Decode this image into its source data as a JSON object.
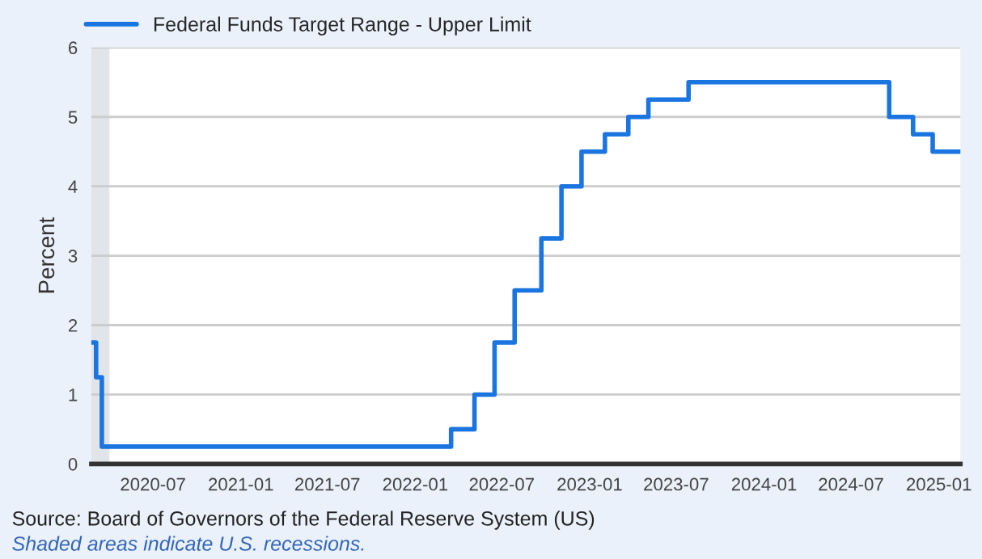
{
  "chart_data": {
    "type": "step",
    "ylabel": "Percent",
    "x": [
      "2020-02-23",
      "2020-03-04",
      "2020-03-16",
      "2022-03-17",
      "2022-05-05",
      "2022-06-16",
      "2022-07-28",
      "2022-09-22",
      "2022-11-03",
      "2022-12-15",
      "2023-02-02",
      "2023-03-23",
      "2023-05-04",
      "2023-07-27",
      "2024-09-19",
      "2024-11-08",
      "2024-12-19",
      "2025-02-15"
    ],
    "series": [
      {
        "name": "Federal Funds Target Range - Upper Limit",
        "color": "#1a75e0",
        "values": [
          1.75,
          1.25,
          0.25,
          0.5,
          1.0,
          1.75,
          2.5,
          3.25,
          4.0,
          4.5,
          4.75,
          5.0,
          5.25,
          5.5,
          5.0,
          4.75,
          4.5,
          4.5
        ]
      }
    ],
    "xlim": [
      "2020-02-23",
      "2025-02-15"
    ],
    "xticks": [
      "2020-07",
      "2021-01",
      "2021-07",
      "2022-01",
      "2022-07",
      "2023-01",
      "2023-07",
      "2024-01",
      "2024-07",
      "2025-01"
    ],
    "ylim": [
      0,
      6
    ],
    "yticks": [
      0,
      1,
      2,
      3,
      4,
      5,
      6
    ],
    "grid": "y",
    "legend": "top",
    "bands": [
      {
        "axis": "x",
        "from": "2020-02-23",
        "to": "2020-04-01",
        "color": "#e1e5ea"
      }
    ],
    "annotations": [
      "Source: Board of Governors of the Federal Reserve System (US)",
      "Shaded areas indicate U.S. recessions."
    ]
  }
}
